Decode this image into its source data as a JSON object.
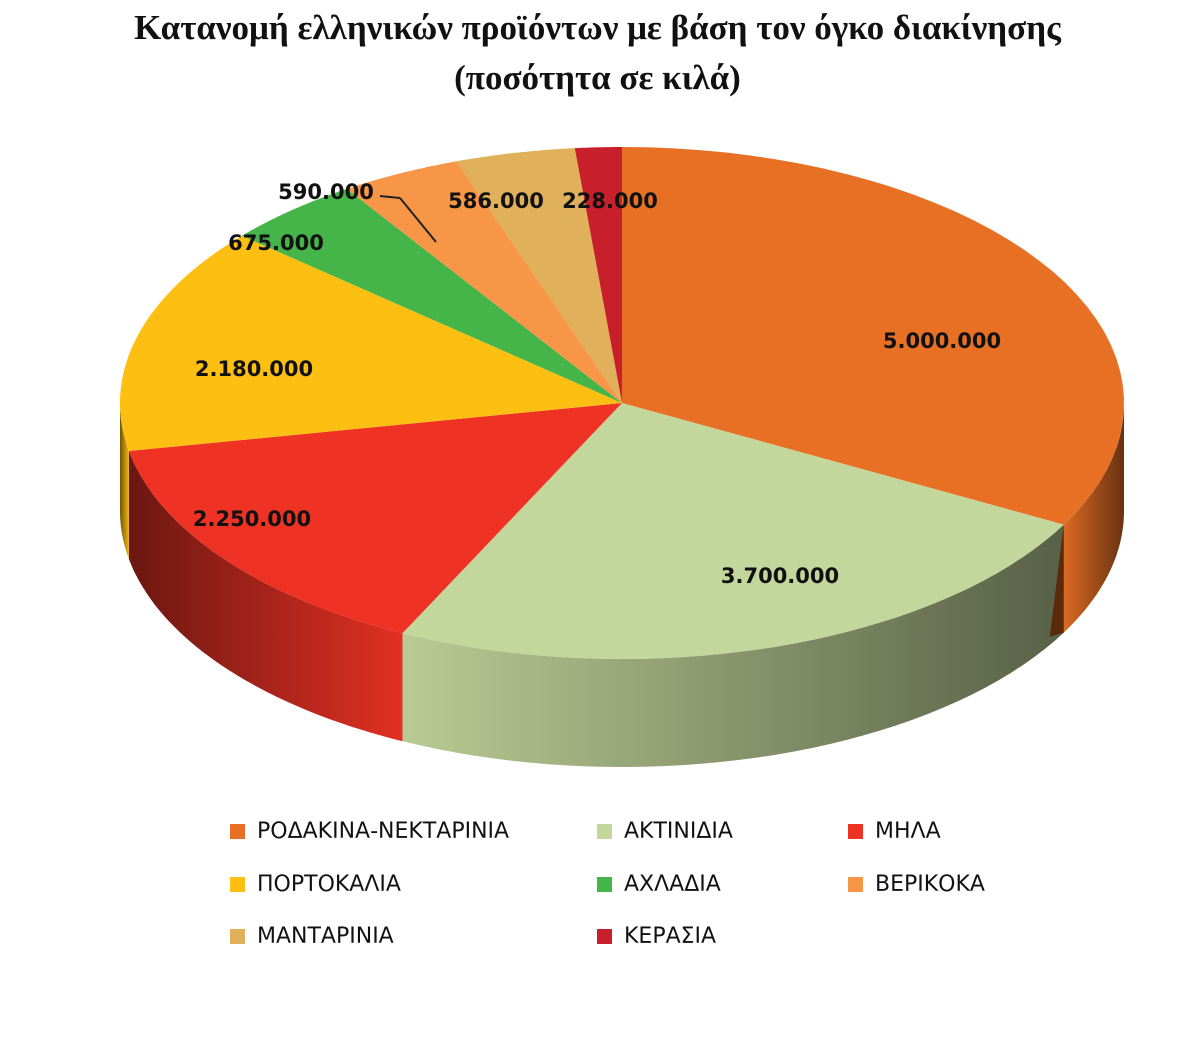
{
  "chart_data": {
    "type": "pie",
    "title": "Κατανομή ελληνικών προϊόντων με βάση τον όγκο διακίνησης",
    "subtitle": "(ποσότητα σε κιλά)",
    "categories": [
      "ΡΟΔΑΚΙΝΑ-ΝΕΚΤΑΡΙΝΙΑ",
      "ΑΚΤΙΝΙΔΙΑ",
      "ΜΗΛΑ",
      "ΠΟΡΤΟΚΑΛΙΑ",
      "ΑΧΛΑΔΙΑ",
      "ΒΕΡΙΚΟΚΑ",
      "ΜΑΝΤΑΡΙΝΙΑ",
      "ΚΕΡΑΣΙΑ"
    ],
    "values": [
      5000000,
      3700000,
      2250000,
      2180000,
      675000,
      590000,
      586000,
      228000
    ],
    "data_labels": [
      "5.000.000",
      "3.700.000",
      "2.250.000",
      "2.180.000",
      "675.000",
      "590.000",
      "586.000",
      "228.000"
    ],
    "colors": [
      "#e87025",
      "#c3d69b",
      "#ee3325",
      "#fdbf12",
      "#46b549",
      "#f79646",
      "#e0b05a",
      "#c8202a"
    ],
    "legend_position": "bottom",
    "style": "3d"
  }
}
